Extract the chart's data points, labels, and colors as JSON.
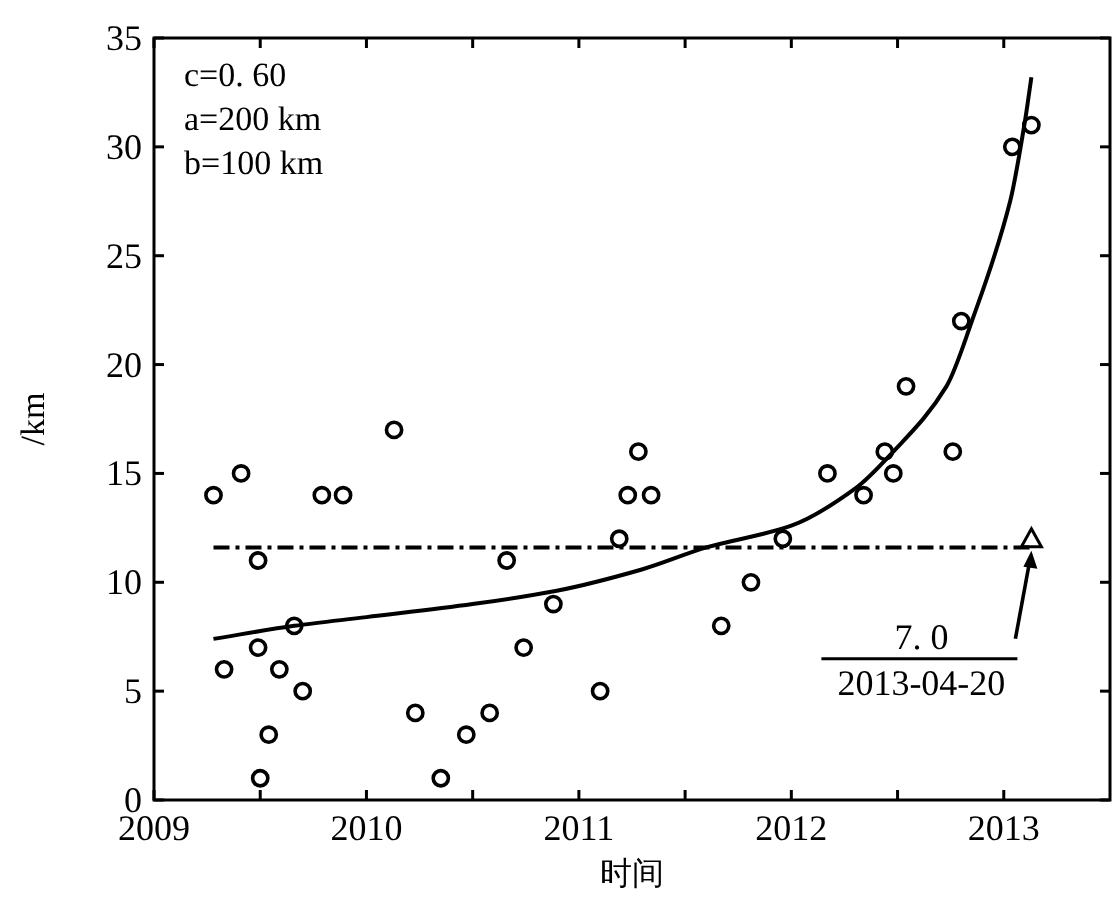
{
  "chart_data": {
    "type": "scatter",
    "xlabel": "时间",
    "ylabel": "/km",
    "xlim": [
      2009,
      2013.5
    ],
    "ylim": [
      0,
      35
    ],
    "xticks": [
      2009,
      {
        "value": 2009.5,
        "label": null
      },
      2010,
      {
        "value": 2010.5,
        "label": null
      },
      2011,
      {
        "value": 2011.5,
        "label": null
      },
      2012,
      {
        "value": 2012.5,
        "label": null
      },
      2013
    ],
    "yticks": [
      0,
      5,
      10,
      15,
      20,
      25,
      30,
      35
    ],
    "grid": false,
    "series": [
      {
        "marker": "circle",
        "color": "#000000",
        "x": [
          2009.28,
          2009.33,
          2009.41,
          2009.49,
          2009.49,
          2009.5,
          2009.54,
          2009.59,
          2009.66,
          2009.7,
          2009.79,
          2009.89,
          2010.13,
          2010.23,
          2010.35,
          2010.47,
          2010.58,
          2010.66,
          2010.74,
          2010.88,
          2011.1,
          2011.19,
          2011.23,
          2011.28,
          2011.34,
          2011.67,
          2011.81,
          2011.96,
          2012.17,
          2012.34,
          2012.44,
          2012.48,
          2012.54,
          2012.76,
          2012.8,
          2013.04,
          2013.13
        ],
        "values": [
          14,
          6,
          15,
          11,
          7,
          1,
          3,
          6,
          8,
          5,
          14,
          14,
          17,
          4,
          1,
          3,
          4,
          11,
          7,
          9,
          5,
          12,
          14,
          16,
          14,
          8,
          10,
          12,
          15,
          14,
          16,
          15,
          19,
          16,
          22,
          30,
          31
        ]
      },
      {
        "type": "line",
        "line_style": "solid",
        "color": "#000000",
        "x": [
          2009.28,
          2009.66,
          2010.0,
          2010.5,
          2010.89,
          2011.3,
          2011.6,
          2012.0,
          2012.3,
          2012.47,
          2012.73,
          2012.85,
          2013.03,
          2013.1,
          2013.13
        ],
        "values": [
          7.4,
          8.0,
          8.4,
          9.0,
          9.6,
          10.6,
          11.6,
          12.6,
          14.3,
          15.9,
          19.0,
          22.0,
          27.5,
          31.2,
          33.2
        ]
      },
      {
        "type": "line",
        "line_style": "dashdot",
        "color": "#000000",
        "x": [
          2009.28,
          2013.13
        ],
        "values": [
          11.6,
          11.6
        ]
      },
      {
        "type": "scatter",
        "marker": "triangle",
        "color": "#000000",
        "x": [
          2013.13
        ],
        "values": [
          12
        ]
      }
    ],
    "annotations": [
      "c=0. 60",
      "a=200 km",
      "b=100 km",
      "7. 0",
      "2013-04-20"
    ]
  }
}
